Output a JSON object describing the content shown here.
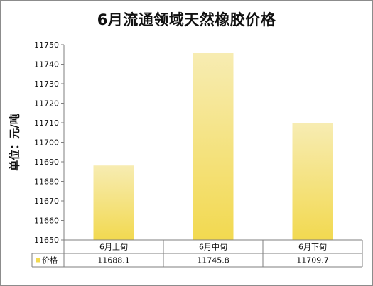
{
  "chart_data": {
    "type": "bar",
    "title": "6月流通领域天然橡胶价格",
    "ylabel": "单位：元/吨",
    "xlabel": "",
    "categories": [
      "6月上旬",
      "6月中旬",
      "6月下旬"
    ],
    "series": [
      {
        "name": "价格",
        "values": [
          11688.1,
          11745.8,
          11709.7
        ],
        "display": [
          "11688.1",
          "11745.8",
          "11709.7"
        ]
      }
    ],
    "ylim": [
      11650,
      11750
    ],
    "yticks": [
      "11650",
      "11660",
      "11670",
      "11680",
      "11690",
      "11700",
      "11710",
      "11720",
      "11730",
      "11740",
      "11750"
    ],
    "grid": false,
    "legend": "data-table",
    "colors": {
      "bar_top": "#f7ecb2",
      "bar_bottom": "#f2d950",
      "axis": "#7f7f7f"
    }
  }
}
